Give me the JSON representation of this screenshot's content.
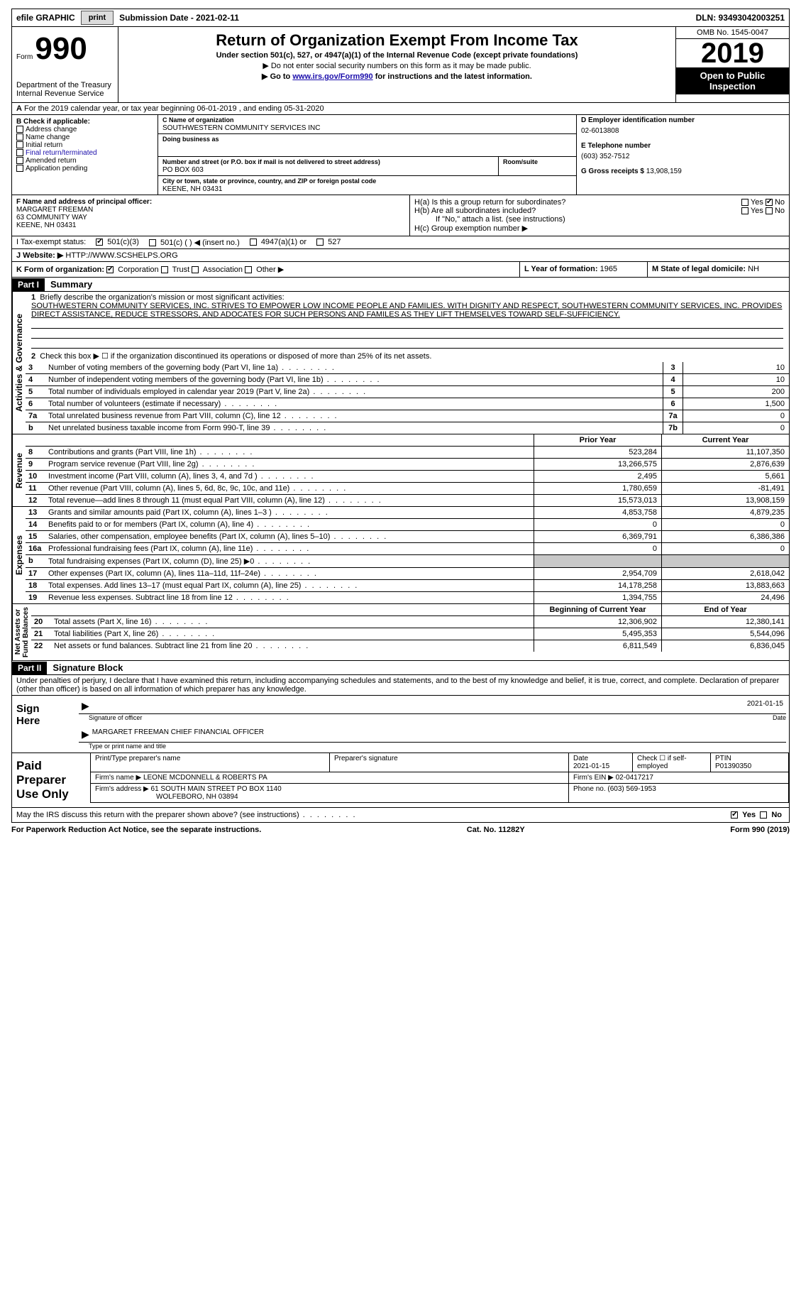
{
  "topbar": {
    "efile": "efile GRAPHIC",
    "print": "print",
    "submission": "Submission Date - 2021-02-11",
    "dln": "DLN: 93493042003251"
  },
  "header": {
    "form_word": "Form",
    "form_num": "990",
    "dept": "Department of the Treasury\nInternal Revenue Service",
    "title": "Return of Organization Exempt From Income Tax",
    "subtitle": "Under section 501(c), 527, or 4947(a)(1) of the Internal Revenue Code (except private foundations)",
    "instr1": "▶ Do not enter social security numbers on this form as it may be made public.",
    "instr2_pre": "▶ Go to ",
    "instr2_link": "www.irs.gov/Form990",
    "instr2_post": " for instructions and the latest information.",
    "omb": "OMB No. 1545-0047",
    "year": "2019",
    "open": "Open to Public Inspection"
  },
  "periodA": "For the 2019 calendar year, or tax year beginning 06-01-2019   , and ending 05-31-2020",
  "blockB": {
    "label": "B Check if applicable:",
    "items": [
      "Address change",
      "Name change",
      "Initial return",
      "Final return/terminated",
      "Amended return",
      "Application pending"
    ]
  },
  "blockC": {
    "name_lbl": "C Name of organization",
    "name": "SOUTHWESTERN COMMUNITY SERVICES INC",
    "dba_lbl": "Doing business as",
    "dba": "",
    "street_lbl": "Number and street (or P.O. box if mail is not delivered to street address)",
    "room_lbl": "Room/suite",
    "street": "PO BOX 603",
    "city_lbl": "City or town, state or province, country, and ZIP or foreign postal code",
    "city": "KEENE, NH  03431"
  },
  "sideD": {
    "d_lbl": "D Employer identification number",
    "ein": "02-6013808",
    "e_lbl": "E Telephone number",
    "phone": "(603) 352-7512",
    "g_lbl": "G Gross receipts $",
    "gross": "13,908,159"
  },
  "blockF": {
    "lbl": "F Name and address of principal officer:",
    "line1": "MARGARET FREEMAN",
    "line2": "63 COMMUNITY WAY",
    "line3": "KEENE, NH  03431"
  },
  "blockH": {
    "ha": "H(a)  Is this a group return for subordinates?",
    "hb": "H(b)  Are all subordinates included?",
    "hb_note": "If \"No,\" attach a list. (see instructions)",
    "hc": "H(c)  Group exemption number ▶"
  },
  "lineI": {
    "lbl": "I    Tax-exempt status:",
    "o1": "501(c)(3)",
    "o2": "501(c) (  ) ◀ (insert no.)",
    "o3": "4947(a)(1) or",
    "o4": "527"
  },
  "lineJ": {
    "lbl": "J    Website: ▶",
    "val": "HTTP://WWW.SCSHELPS.ORG"
  },
  "lineK": {
    "lbl": "K Form of organization:",
    "o1": "Corporation",
    "o2": "Trust",
    "o3": "Association",
    "o4": "Other ▶"
  },
  "lineL": {
    "lbl": "L Year of formation:",
    "val": "1965"
  },
  "lineM": {
    "lbl": "M State of legal domicile:",
    "val": "NH"
  },
  "parts": {
    "p1": "Part I",
    "p1t": "Summary",
    "p2": "Part II",
    "p2t": "Signature Block"
  },
  "side_labels": {
    "ag": "Activities & Governance",
    "rev": "Revenue",
    "exp": "Expenses",
    "na": "Net Assets or\nFund Balances"
  },
  "summary": {
    "l1_lbl": "Briefly describe the organization's mission or most significant activities:",
    "mission": "SOUTHWESTERN COMMUNITY SERVICES, INC. STRIVES TO EMPOWER LOW INCOME PEOPLE AND FAMILIES. WITH DIGNITY AND RESPECT, SOUTHWESTERN COMMUNITY SERVICES, INC. PROVIDES DIRECT ASSISTANCE, REDUCE STRESSORS, AND ADOCATES FOR SUCH PERSONS AND FAMILES AS THEY LIFT THEMSELVES TOWARD SELF-SUFFICIENCY.",
    "l2": "Check this box ▶ ☐  if the organization discontinued its operations or disposed of more than 25% of its net assets.",
    "rows_single": [
      {
        "n": "3",
        "t": "Number of voting members of the governing body (Part VI, line 1a)",
        "b": "3",
        "v": "10"
      },
      {
        "n": "4",
        "t": "Number of independent voting members of the governing body (Part VI, line 1b)",
        "b": "4",
        "v": "10"
      },
      {
        "n": "5",
        "t": "Total number of individuals employed in calendar year 2019 (Part V, line 2a)",
        "b": "5",
        "v": "200"
      },
      {
        "n": "6",
        "t": "Total number of volunteers (estimate if necessary)",
        "b": "6",
        "v": "1,500"
      },
      {
        "n": "7a",
        "t": "Total unrelated business revenue from Part VIII, column (C), line 12",
        "b": "7a",
        "v": "0"
      },
      {
        "n": "b",
        "t": "Net unrelated business taxable income from Form 990-T, line 39",
        "b": "7b",
        "v": "0"
      }
    ],
    "col_prior": "Prior Year",
    "col_curr": "Current Year",
    "rev_rows": [
      {
        "n": "8",
        "t": "Contributions and grants (Part VIII, line 1h)",
        "p": "523,284",
        "c": "11,107,350"
      },
      {
        "n": "9",
        "t": "Program service revenue (Part VIII, line 2g)",
        "p": "13,266,575",
        "c": "2,876,639"
      },
      {
        "n": "10",
        "t": "Investment income (Part VIII, column (A), lines 3, 4, and 7d )",
        "p": "2,495",
        "c": "5,661"
      },
      {
        "n": "11",
        "t": "Other revenue (Part VIII, column (A), lines 5, 6d, 8c, 9c, 10c, and 11e)",
        "p": "1,780,659",
        "c": "-81,491"
      },
      {
        "n": "12",
        "t": "Total revenue—add lines 8 through 11 (must equal Part VIII, column (A), line 12)",
        "p": "15,573,013",
        "c": "13,908,159"
      }
    ],
    "exp_rows": [
      {
        "n": "13",
        "t": "Grants and similar amounts paid (Part IX, column (A), lines 1–3 )",
        "p": "4,853,758",
        "c": "4,879,235"
      },
      {
        "n": "14",
        "t": "Benefits paid to or for members (Part IX, column (A), line 4)",
        "p": "0",
        "c": "0"
      },
      {
        "n": "15",
        "t": "Salaries, other compensation, employee benefits (Part IX, column (A), lines 5–10)",
        "p": "6,369,791",
        "c": "6,386,386"
      },
      {
        "n": "16a",
        "t": "Professional fundraising fees (Part IX, column (A), line 11e)",
        "p": "0",
        "c": "0"
      },
      {
        "n": "b",
        "t": "Total fundraising expenses (Part IX, column (D), line 25) ▶0",
        "p": "__SHADE__",
        "c": "__SHADE__"
      },
      {
        "n": "17",
        "t": "Other expenses (Part IX, column (A), lines 11a–11d, 11f–24e)",
        "p": "2,954,709",
        "c": "2,618,042"
      },
      {
        "n": "18",
        "t": "Total expenses. Add lines 13–17 (must equal Part IX, column (A), line 25)",
        "p": "14,178,258",
        "c": "13,883,663"
      },
      {
        "n": "19",
        "t": "Revenue less expenses. Subtract line 18 from line 12",
        "p": "1,394,755",
        "c": "24,496"
      }
    ],
    "col_boy": "Beginning of Current Year",
    "col_eoy": "End of Year",
    "na_rows": [
      {
        "n": "20",
        "t": "Total assets (Part X, line 16)",
        "p": "12,306,902",
        "c": "12,380,141"
      },
      {
        "n": "21",
        "t": "Total liabilities (Part X, line 26)",
        "p": "5,495,353",
        "c": "5,544,096"
      },
      {
        "n": "22",
        "t": "Net assets or fund balances. Subtract line 21 from line 20",
        "p": "6,811,549",
        "c": "6,836,045"
      }
    ]
  },
  "sig": {
    "perjury": "Under penalties of perjury, I declare that I have examined this return, including accompanying schedules and statements, and to the best of my knowledge and belief, it is true, correct, and complete. Declaration of preparer (other than officer) is based on all information of which preparer has any knowledge.",
    "sign_here": "Sign Here",
    "sig_officer": "Signature of officer",
    "sig_date": "2021-01-15",
    "date_lbl": "Date",
    "name_title": "MARGARET FREEMAN  CHIEF FINANCIAL OFFICER",
    "name_lbl": "Type or print name and title"
  },
  "prep": {
    "title": "Paid Preparer Use Only",
    "h1": "Print/Type preparer's name",
    "h2": "Preparer's signature",
    "h3": "Date",
    "h3v": "2021-01-15",
    "h4": "Check ☐ if self-employed",
    "h5": "PTIN",
    "h5v": "P01390350",
    "firm_lbl": "Firm's name    ▶",
    "firm": "LEONE MCDONNELL & ROBERTS PA",
    "ein_lbl": "Firm's EIN ▶",
    "ein": "02-0417217",
    "addr_lbl": "Firm's address ▶",
    "addr1": "61 SOUTH MAIN STREET PO BOX 1140",
    "addr2": "WOLFEBORO, NH  03894",
    "phone_lbl": "Phone no.",
    "phone": "(603) 569-1953"
  },
  "footer": {
    "discuss": "May the IRS discuss this return with the preparer shown above? (see instructions)",
    "yes": "Yes",
    "no": "No",
    "paperwork": "For Paperwork Reduction Act Notice, see the separate instructions.",
    "cat": "Cat. No. 11282Y",
    "form": "Form 990 (2019)"
  }
}
